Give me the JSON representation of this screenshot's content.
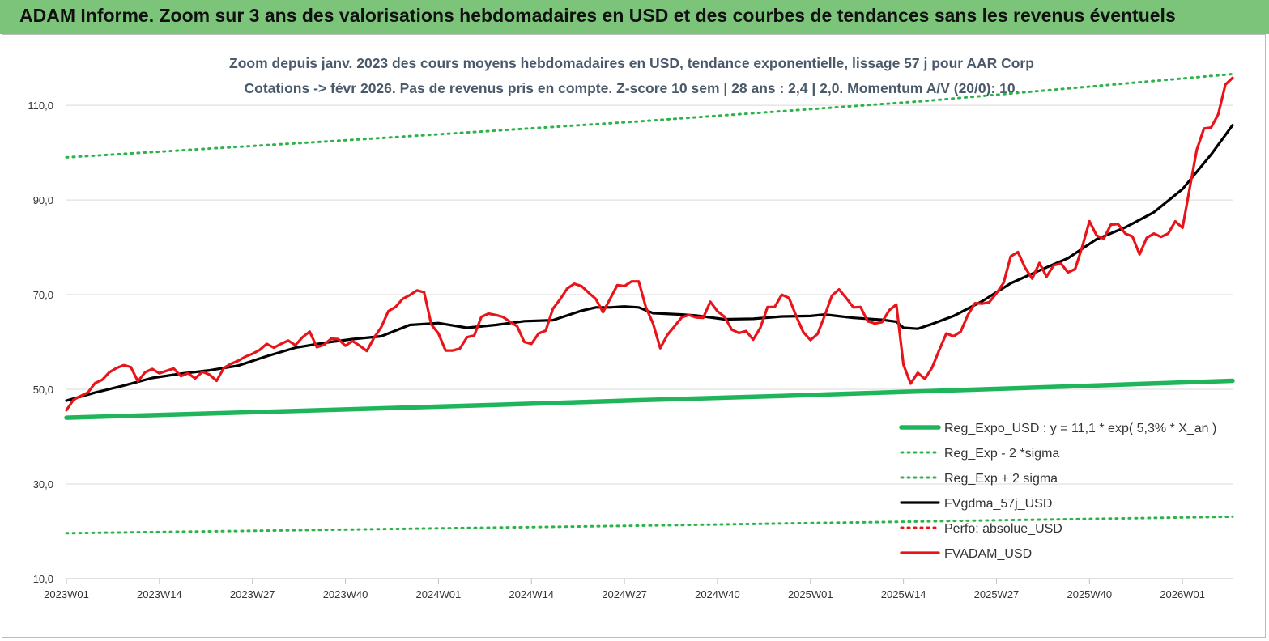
{
  "banner": {
    "title": "ADAM Informe. Zoom sur 3 ans des valorisations hebdomadaires en USD et des courbes de tendances sans les revenus éventuels"
  },
  "colors": {
    "banner_bg": "#7dc47b",
    "trend": "#1fb55a",
    "band": "#2db34a",
    "smooth": "#000000",
    "price": "#e8141a",
    "perf": "#e8141a",
    "grid": "#d9d9d9"
  },
  "chart_data": {
    "type": "line",
    "title": "Zoom depuis janv. 2023 des cours moyens hebdomadaires en USD, tendance exponentielle, lissage 57 j pour AAR Corp",
    "subtitle": "Cotations -> févr 2026.  Pas de revenus pris en compte. Z-score 10 sem  | 28 ans : 2,4  | 2,0. Momentum A/V (20/0): 10.",
    "xlabel": "",
    "ylabel": "",
    "x_range": [
      0,
      163
    ],
    "ylim": [
      10,
      116
    ],
    "y_ticks": [
      10,
      30,
      50,
      70,
      90,
      110
    ],
    "y_tick_labels": [
      "10,0",
      "30,0",
      "50,0",
      "70,0",
      "90,0",
      "110,0"
    ],
    "x_tick_labels": [
      "2023W01",
      "2023W14",
      "2023W27",
      "2023W40",
      "2024W01",
      "2024W14",
      "2024W27",
      "2024W40",
      "2025W01",
      "2025W14",
      "2025W27",
      "2025W40",
      "2026W01"
    ],
    "x_tick_weeks": [
      0,
      13,
      26,
      39,
      52,
      65,
      78,
      91,
      104,
      117,
      130,
      143,
      156
    ],
    "grid": "horizontal",
    "legend_position": "bottom-right",
    "series": [
      {
        "name": "Reg_Expo_USD : y = 11,1 * exp( 5,3% *  X_an )",
        "style": "thick-solid",
        "color": "#1fb55a",
        "points": [
          [
            0,
            44.0
          ],
          [
            20,
            44.9
          ],
          [
            40,
            45.8
          ],
          [
            60,
            46.7
          ],
          [
            80,
            47.7
          ],
          [
            100,
            48.6
          ],
          [
            120,
            49.6
          ],
          [
            140,
            50.6
          ],
          [
            163,
            51.8
          ]
        ]
      },
      {
        "name": "Reg_Exp - 2 *sigma",
        "style": "dotted",
        "color": "#2db34a",
        "points": [
          [
            0,
            19.6
          ],
          [
            40,
            20.4
          ],
          [
            80,
            21.2
          ],
          [
            120,
            22.1
          ],
          [
            163,
            23.1
          ]
        ]
      },
      {
        "name": "Reg_Exp + 2 sigma",
        "style": "dotted",
        "color": "#2db34a",
        "points": [
          [
            0,
            99.0
          ],
          [
            40,
            102.7
          ],
          [
            80,
            106.6
          ],
          [
            120,
            110.9
          ],
          [
            163,
            116.6
          ]
        ]
      },
      {
        "name": "FVgdma_57j_USD",
        "style": "solid",
        "color": "#000000",
        "points": [
          [
            0,
            47.6
          ],
          [
            4,
            49.3
          ],
          [
            8,
            50.8
          ],
          [
            12,
            52.4
          ],
          [
            16,
            53.3
          ],
          [
            20,
            54.0
          ],
          [
            24,
            55.0
          ],
          [
            28,
            57.0
          ],
          [
            32,
            58.8
          ],
          [
            36,
            59.8
          ],
          [
            40,
            60.6
          ],
          [
            44,
            61.2
          ],
          [
            48,
            63.6
          ],
          [
            52,
            64.0
          ],
          [
            56,
            63.0
          ],
          [
            60,
            63.6
          ],
          [
            64,
            64.4
          ],
          [
            68,
            64.6
          ],
          [
            72,
            66.6
          ],
          [
            74,
            67.3
          ],
          [
            76,
            67.3
          ],
          [
            78,
            67.5
          ],
          [
            80,
            67.3
          ],
          [
            82,
            66.1
          ],
          [
            86,
            65.8
          ],
          [
            88,
            65.6
          ],
          [
            92,
            64.8
          ],
          [
            96,
            64.9
          ],
          [
            100,
            65.4
          ],
          [
            104,
            65.5
          ],
          [
            106,
            65.8
          ],
          [
            110,
            65.1
          ],
          [
            114,
            64.7
          ],
          [
            116,
            64.3
          ],
          [
            117,
            63.0
          ],
          [
            119,
            62.8
          ],
          [
            121,
            63.8
          ],
          [
            124,
            65.5
          ],
          [
            128,
            68.6
          ],
          [
            132,
            72.4
          ],
          [
            136,
            75.1
          ],
          [
            140,
            77.7
          ],
          [
            144,
            81.7
          ],
          [
            148,
            84.2
          ],
          [
            152,
            87.4
          ],
          [
            156,
            92.3
          ],
          [
            160,
            99.6
          ],
          [
            163,
            105.8
          ]
        ]
      },
      {
        "name": "Perfo: absolue_USD",
        "style": "dotted",
        "color": "#e8141a",
        "points": []
      },
      {
        "name": "FVADAM_USD",
        "style": "solid",
        "color": "#e8141a",
        "points": [
          [
            0,
            45.6
          ],
          [
            1,
            47.8
          ],
          [
            2,
            48.6
          ],
          [
            3,
            49.3
          ],
          [
            4,
            51.3
          ],
          [
            5,
            52.0
          ],
          [
            6,
            53.6
          ],
          [
            7,
            54.5
          ],
          [
            8,
            55.1
          ],
          [
            9,
            54.7
          ],
          [
            10,
            51.7
          ],
          [
            11,
            53.6
          ],
          [
            12,
            54.3
          ],
          [
            13,
            53.4
          ],
          [
            14,
            53.9
          ],
          [
            15,
            54.4
          ],
          [
            16,
            52.8
          ],
          [
            17,
            53.4
          ],
          [
            18,
            52.3
          ],
          [
            19,
            53.7
          ],
          [
            20,
            53.1
          ],
          [
            21,
            51.8
          ],
          [
            22,
            54.5
          ],
          [
            23,
            55.4
          ],
          [
            24,
            56.0
          ],
          [
            25,
            56.9
          ],
          [
            26,
            57.5
          ],
          [
            27,
            58.3
          ],
          [
            28,
            59.6
          ],
          [
            29,
            58.8
          ],
          [
            30,
            59.6
          ],
          [
            31,
            60.3
          ],
          [
            32,
            59.3
          ],
          [
            33,
            61.0
          ],
          [
            34,
            62.2
          ],
          [
            35,
            58.9
          ],
          [
            36,
            59.4
          ],
          [
            37,
            60.7
          ],
          [
            38,
            60.6
          ],
          [
            39,
            59.2
          ],
          [
            40,
            60.2
          ],
          [
            41,
            59.2
          ],
          [
            42,
            58.1
          ],
          [
            43,
            60.9
          ],
          [
            44,
            63.1
          ],
          [
            45,
            66.5
          ],
          [
            46,
            67.4
          ],
          [
            47,
            69.1
          ],
          [
            48,
            69.9
          ],
          [
            49,
            70.9
          ],
          [
            50,
            70.5
          ],
          [
            51,
            63.7
          ],
          [
            52,
            61.8
          ],
          [
            53,
            58.2
          ],
          [
            54,
            58.2
          ],
          [
            55,
            58.6
          ],
          [
            56,
            61.0
          ],
          [
            57,
            61.4
          ],
          [
            58,
            65.3
          ],
          [
            59,
            66.0
          ],
          [
            60,
            65.7
          ],
          [
            61,
            65.3
          ],
          [
            62,
            64.3
          ],
          [
            63,
            63.3
          ],
          [
            64,
            60.0
          ],
          [
            65,
            59.6
          ],
          [
            66,
            61.8
          ],
          [
            67,
            62.4
          ],
          [
            68,
            67.0
          ],
          [
            69,
            69.0
          ],
          [
            70,
            71.3
          ],
          [
            71,
            72.3
          ],
          [
            72,
            71.8
          ],
          [
            73,
            70.4
          ],
          [
            74,
            69.1
          ],
          [
            75,
            66.3
          ],
          [
            76,
            69.1
          ],
          [
            77,
            72.0
          ],
          [
            78,
            71.8
          ],
          [
            79,
            72.8
          ],
          [
            80,
            72.8
          ],
          [
            81,
            67.3
          ],
          [
            82,
            63.9
          ],
          [
            83,
            58.7
          ],
          [
            84,
            61.5
          ],
          [
            85,
            63.3
          ],
          [
            86,
            65.2
          ],
          [
            87,
            65.7
          ],
          [
            88,
            65.2
          ],
          [
            89,
            65.1
          ],
          [
            90,
            68.5
          ],
          [
            91,
            66.5
          ],
          [
            92,
            65.3
          ],
          [
            93,
            62.6
          ],
          [
            94,
            61.9
          ],
          [
            95,
            62.3
          ],
          [
            96,
            60.5
          ],
          [
            97,
            63.0
          ],
          [
            98,
            67.4
          ],
          [
            99,
            67.4
          ],
          [
            100,
            70.0
          ],
          [
            101,
            69.3
          ],
          [
            102,
            65.5
          ],
          [
            103,
            62.1
          ],
          [
            104,
            60.4
          ],
          [
            105,
            61.7
          ],
          [
            106,
            65.6
          ],
          [
            107,
            69.8
          ],
          [
            108,
            71.1
          ],
          [
            109,
            69.3
          ],
          [
            110,
            67.3
          ],
          [
            111,
            67.4
          ],
          [
            112,
            64.4
          ],
          [
            113,
            63.9
          ],
          [
            114,
            64.2
          ],
          [
            115,
            66.7
          ],
          [
            116,
            67.9
          ],
          [
            117,
            55.2
          ],
          [
            118,
            51.2
          ],
          [
            119,
            53.5
          ],
          [
            120,
            52.2
          ],
          [
            121,
            54.6
          ],
          [
            122,
            58.3
          ],
          [
            123,
            61.8
          ],
          [
            124,
            61.2
          ],
          [
            125,
            62.2
          ],
          [
            126,
            65.7
          ],
          [
            127,
            68.2
          ],
          [
            128,
            68.1
          ],
          [
            129,
            68.4
          ],
          [
            130,
            70.3
          ],
          [
            131,
            72.5
          ],
          [
            132,
            78.1
          ],
          [
            133,
            79.0
          ],
          [
            134,
            75.7
          ],
          [
            135,
            73.4
          ],
          [
            136,
            76.7
          ],
          [
            137,
            73.8
          ],
          [
            138,
            76.2
          ],
          [
            139,
            76.6
          ],
          [
            140,
            74.7
          ],
          [
            141,
            75.4
          ],
          [
            142,
            80.2
          ],
          [
            143,
            85.5
          ],
          [
            144,
            82.5
          ],
          [
            145,
            81.8
          ],
          [
            146,
            84.8
          ],
          [
            147,
            84.9
          ],
          [
            148,
            82.9
          ],
          [
            149,
            82.3
          ],
          [
            150,
            78.5
          ],
          [
            151,
            82.0
          ],
          [
            152,
            82.9
          ],
          [
            153,
            82.2
          ],
          [
            154,
            82.9
          ],
          [
            155,
            85.5
          ],
          [
            156,
            84.1
          ],
          [
            157,
            92.4
          ],
          [
            158,
            100.6
          ],
          [
            159,
            105.1
          ],
          [
            160,
            105.3
          ],
          [
            161,
            108.1
          ],
          [
            162,
            114.4
          ],
          [
            163,
            115.8
          ]
        ]
      }
    ]
  }
}
